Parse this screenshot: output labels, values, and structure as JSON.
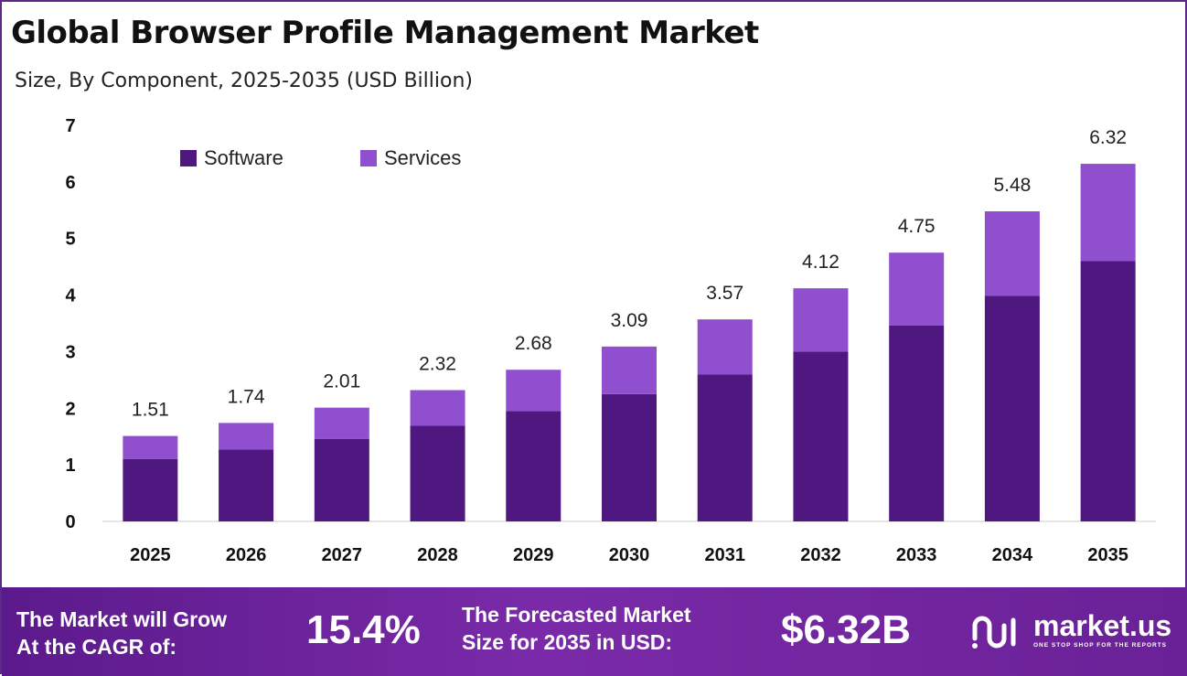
{
  "title": "Global Browser Profile Management Market",
  "subtitle": "Size, By Component, 2025-2035 (USD Billion)",
  "colors": {
    "software": "#4f1780",
    "services": "#8f4fcf",
    "footer": "#6a2197"
  },
  "chart_data": {
    "type": "bar",
    "stacked": true,
    "categories": [
      "2025",
      "2026",
      "2027",
      "2028",
      "2029",
      "2030",
      "2031",
      "2032",
      "2033",
      "2034",
      "2035"
    ],
    "series": [
      {
        "name": "Software",
        "values": [
          1.1,
          1.27,
          1.46,
          1.69,
          1.95,
          2.25,
          2.6,
          3.0,
          3.46,
          3.99,
          4.6
        ]
      },
      {
        "name": "Services",
        "values": [
          0.41,
          0.47,
          0.55,
          0.63,
          0.73,
          0.84,
          0.97,
          1.12,
          1.29,
          1.49,
          1.72
        ]
      }
    ],
    "totals": [
      1.51,
      1.74,
      2.01,
      2.32,
      2.68,
      3.09,
      3.57,
      4.12,
      4.75,
      5.48,
      6.32
    ],
    "total_labels": [
      "1.51",
      "1.74",
      "2.01",
      "2.32",
      "2.68",
      "3.09",
      "3.57",
      "4.12",
      "4.75",
      "5.48",
      "6.32"
    ],
    "yticks": [
      0,
      1,
      2,
      3,
      4,
      5,
      6,
      7
    ],
    "ylim": [
      0,
      7
    ],
    "grid": false,
    "legend": "top-left"
  },
  "footer": {
    "cagr_label_1": "The Market will Grow",
    "cagr_label_2": "At the CAGR of:",
    "cagr_value": "15.4%",
    "forecast_label_1": "The Forecasted Market",
    "forecast_label_2": "Size for 2035 in USD:",
    "forecast_value": "$6.32B",
    "logo_text": "market.us",
    "logo_tagline": "ONE STOP SHOP FOR THE REPORTS",
    "logo_icon": "market-us-logo-icon"
  }
}
